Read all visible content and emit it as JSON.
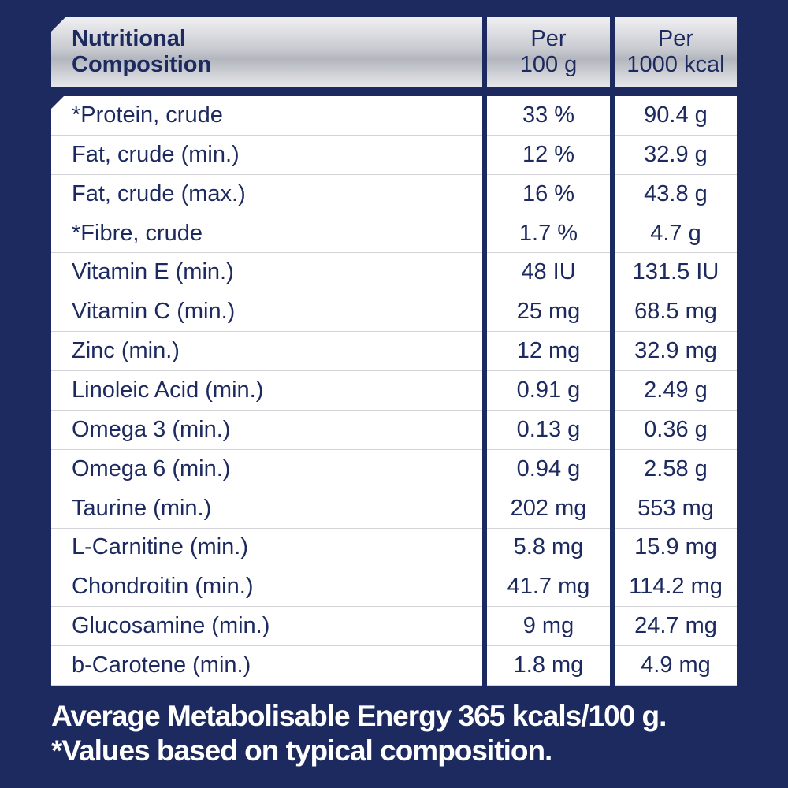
{
  "table": {
    "header": [
      "Nutritional\nComposition",
      "Per\n100 g",
      "Per\n1000 kcal"
    ],
    "rows": [
      [
        "*Protein, crude",
        "33 %",
        "90.4 g"
      ],
      [
        "Fat, crude (min.)",
        "12 %",
        "32.9 g"
      ],
      [
        "Fat, crude (max.)",
        "16 %",
        "43.8 g"
      ],
      [
        "*Fibre, crude",
        "1.7 %",
        "4.7 g"
      ],
      [
        "Vitamin E (min.)",
        "48 IU",
        "131.5 IU"
      ],
      [
        "Vitamin C (min.)",
        "25 mg",
        "68.5 mg"
      ],
      [
        "Zinc (min.)",
        "12 mg",
        "32.9 mg"
      ],
      [
        "Linoleic Acid (min.)",
        "0.91 g",
        "2.49 g"
      ],
      [
        "Omega 3 (min.)",
        "0.13 g",
        "0.36 g"
      ],
      [
        "Omega 6 (min.)",
        "0.94 g",
        "2.58 g"
      ],
      [
        "Taurine (min.)",
        "202 mg",
        "553 mg"
      ],
      [
        "L-Carnitine (min.)",
        "5.8 mg",
        "15.9 mg"
      ],
      [
        "Chondroitin (min.)",
        "41.7 mg",
        "114.2 mg"
      ],
      [
        "Glucosamine (min.)",
        "9 mg",
        "24.7 mg"
      ],
      [
        "b-Carotene (min.)",
        "1.8 mg",
        "4.9 mg"
      ]
    ]
  },
  "footer": [
    "Average Metabolisable Energy 365 kcals/100 g.",
    "*Values based on typical composition."
  ]
}
